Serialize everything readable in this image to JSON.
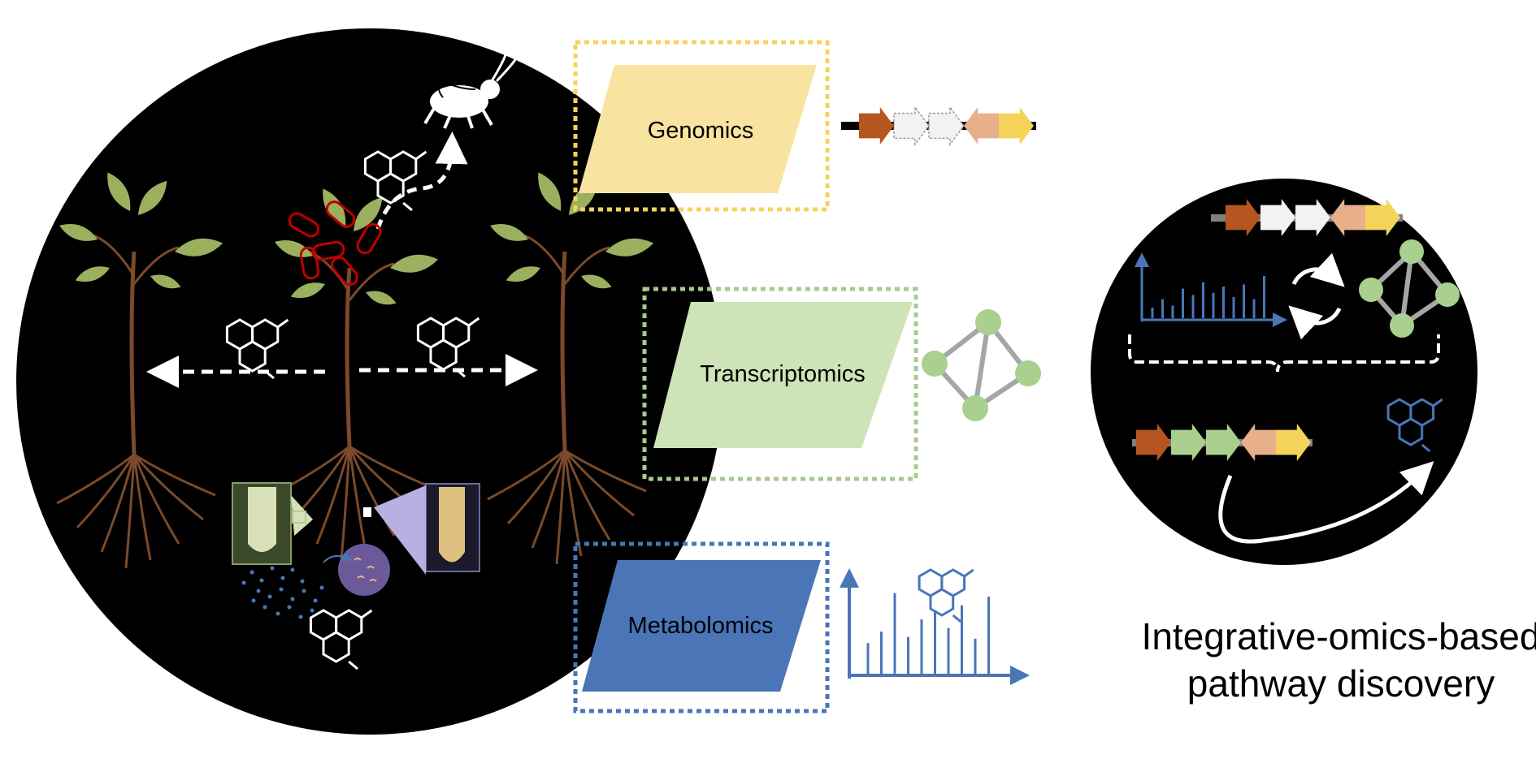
{
  "omics": {
    "genomics": {
      "label": "Genomics",
      "color": "#F8E4A0",
      "border": "#F5D35A"
    },
    "transcriptomics": {
      "label": "Transcriptomics",
      "color": "#CFE3B8",
      "border": "#A9C98A"
    },
    "metabolomics": {
      "label": "Metabolomics",
      "color": "#4A76B8",
      "border": "#4A76B8"
    }
  },
  "title": {
    "line1": "Integrative-omics-based",
    "line2": "pathway discovery"
  },
  "gene_cluster_colors": [
    "#B5551F",
    "#F2F2F2",
    "#F2F2F2",
    "#E8B08A",
    "#F5D35A"
  ],
  "integrated_cluster_colors": [
    "#B5551F",
    "#A9D08E",
    "#A9D08E",
    "#E8B08A",
    "#F5D35A"
  ],
  "spectrum_relative_heights": [
    0.35,
    0.48,
    0.92,
    0.42,
    0.62,
    0.7,
    0.52,
    0.78,
    0.4,
    0.88
  ],
  "mini_spectrum_relative_heights": [
    0.25,
    0.45,
    0.3,
    0.7,
    0.55,
    0.85,
    0.6,
    0.75,
    0.5,
    0.8,
    0.45,
    1.0
  ],
  "accent_colors": {
    "node": "#A9D08E",
    "edge": "#A6A6A6",
    "blue": "#4A76B8",
    "red": "#C00000"
  },
  "icons": [
    "plant-icon",
    "grasshopper-icon",
    "molecule-icon",
    "bacteria-icon",
    "root-tip-icon",
    "cycle-icon",
    "network-icon",
    "spectrum-icon",
    "gene-cluster-icon"
  ]
}
